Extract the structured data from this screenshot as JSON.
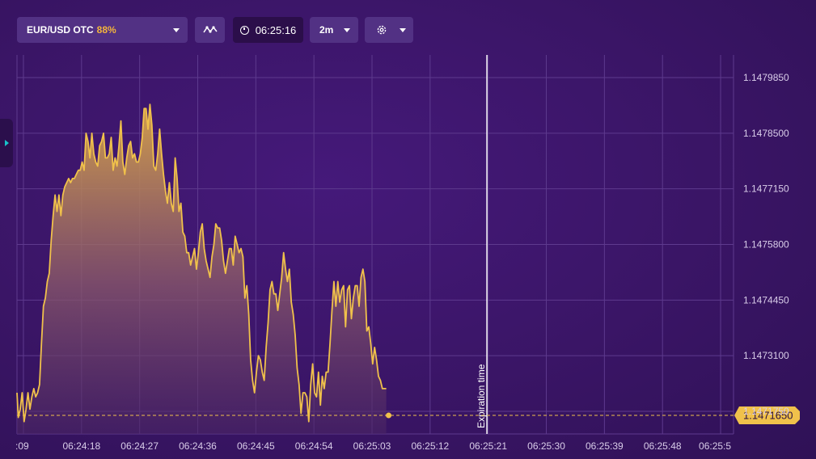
{
  "toolbar": {
    "asset_name": "EUR/USD OTC",
    "asset_payout": "88%",
    "timer": "06:25:16",
    "timeframe": "2m",
    "indicators_icon": "wave-icon",
    "timer_icon": "stopwatch-icon",
    "settings_icon": "gear-icon"
  },
  "colors": {
    "line": "#f0c14b",
    "payout": "#f3b43c",
    "background": "#3a1764",
    "expiration_line": "#ffffff"
  },
  "chart_data": {
    "type": "area",
    "y_ticks": [
      "1.1479850",
      "1.1478500",
      "1.1477150",
      "1.1475800",
      "1.1474450",
      "1.1473100",
      "1.1471750"
    ],
    "x_ticks": [
      ":09",
      "06:24:18",
      "06:24:27",
      "06:24:36",
      "06:24:45",
      "06:24:54",
      "06:25:03",
      "06:25:12",
      "06:25:21",
      "06:25:30",
      "06:25:39",
      "06:25:48",
      "06:25:5"
    ],
    "current_price": "1.1471650",
    "expiration_label": "Expiration time",
    "grid": true,
    "ylim": [
      1.14712,
      1.14804
    ],
    "xlim_seconds_after_06_24_08": [
      0,
      111
    ],
    "expiration_x_seconds": 72.8,
    "points": [
      [
        0.0,
        1.14722
      ],
      [
        0.2,
        1.14716
      ],
      [
        0.5,
        1.14718
      ],
      [
        0.8,
        1.14722
      ],
      [
        1.1,
        1.14715
      ],
      [
        1.4,
        1.14718
      ],
      [
        1.7,
        1.14722
      ],
      [
        2.0,
        1.14718
      ],
      [
        2.3,
        1.14721
      ],
      [
        2.6,
        1.14723
      ],
      [
        2.9,
        1.14721
      ],
      [
        3.2,
        1.14722
      ],
      [
        3.5,
        1.14724
      ],
      [
        3.8,
        1.14734
      ],
      [
        4.1,
        1.14743
      ],
      [
        4.4,
        1.14745
      ],
      [
        4.7,
        1.14749
      ],
      [
        5.0,
        1.14751
      ],
      [
        5.3,
        1.14759
      ],
      [
        5.6,
        1.14765
      ],
      [
        5.9,
        1.1477
      ],
      [
        6.2,
        1.14766
      ],
      [
        6.5,
        1.1477
      ],
      [
        6.8,
        1.14765
      ],
      [
        7.1,
        1.1477
      ],
      [
        7.4,
        1.14772
      ],
      [
        7.7,
        1.14773
      ],
      [
        8.0,
        1.14774
      ],
      [
        8.3,
        1.14773
      ],
      [
        8.6,
        1.14774
      ],
      [
        8.9,
        1.14774
      ],
      [
        9.2,
        1.14775
      ],
      [
        9.5,
        1.14776
      ],
      [
        9.8,
        1.14776
      ],
      [
        10.1,
        1.14778
      ],
      [
        10.4,
        1.14776
      ],
      [
        10.7,
        1.14785
      ],
      [
        11.0,
        1.14783
      ],
      [
        11.3,
        1.14779
      ],
      [
        11.6,
        1.14785
      ],
      [
        11.9,
        1.1478
      ],
      [
        12.2,
        1.14778
      ],
      [
        12.5,
        1.14777
      ],
      [
        12.8,
        1.14782
      ],
      [
        13.1,
        1.14783
      ],
      [
        13.4,
        1.14785
      ],
      [
        13.7,
        1.14779
      ],
      [
        14.0,
        1.14779
      ],
      [
        14.3,
        1.1478
      ],
      [
        14.6,
        1.14784
      ],
      [
        14.9,
        1.14776
      ],
      [
        15.2,
        1.14779
      ],
      [
        15.5,
        1.14777
      ],
      [
        15.8,
        1.14782
      ],
      [
        16.1,
        1.14788
      ],
      [
        16.4,
        1.14778
      ],
      [
        16.7,
        1.14775
      ],
      [
        17.0,
        1.14779
      ],
      [
        17.3,
        1.14782
      ],
      [
        17.6,
        1.14783
      ],
      [
        17.9,
        1.14779
      ],
      [
        18.2,
        1.1478
      ],
      [
        18.5,
        1.14778
      ],
      [
        18.8,
        1.14778
      ],
      [
        19.1,
        1.1478
      ],
      [
        19.4,
        1.14784
      ],
      [
        19.7,
        1.14791
      ],
      [
        20.0,
        1.14791
      ],
      [
        20.3,
        1.14786
      ],
      [
        20.6,
        1.14792
      ],
      [
        20.9,
        1.14787
      ],
      [
        21.2,
        1.14777
      ],
      [
        21.5,
        1.14776
      ],
      [
        21.8,
        1.1478
      ],
      [
        22.1,
        1.14786
      ],
      [
        22.4,
        1.1478
      ],
      [
        22.7,
        1.14775
      ],
      [
        23.0,
        1.14771
      ],
      [
        23.3,
        1.14768
      ],
      [
        23.6,
        1.14773
      ],
      [
        23.9,
        1.14768
      ],
      [
        24.2,
        1.14766
      ],
      [
        24.5,
        1.14779
      ],
      [
        24.8,
        1.14774
      ],
      [
        25.1,
        1.14766
      ],
      [
        25.4,
        1.14768
      ],
      [
        25.7,
        1.14761
      ],
      [
        26.0,
        1.1476
      ],
      [
        26.3,
        1.14756
      ],
      [
        26.6,
        1.14756
      ],
      [
        26.9,
        1.14753
      ],
      [
        27.2,
        1.14755
      ],
      [
        27.5,
        1.14757
      ],
      [
        27.8,
        1.14752
      ],
      [
        28.1,
        1.14756
      ],
      [
        28.4,
        1.14761
      ],
      [
        28.7,
        1.14763
      ],
      [
        29.0,
        1.14757
      ],
      [
        29.3,
        1.14754
      ],
      [
        29.6,
        1.14752
      ],
      [
        29.9,
        1.1475
      ],
      [
        30.2,
        1.14755
      ],
      [
        30.5,
        1.14758
      ],
      [
        30.8,
        1.14763
      ],
      [
        31.1,
        1.14762
      ],
      [
        31.4,
        1.14762
      ],
      [
        31.7,
        1.14759
      ],
      [
        32.0,
        1.14754
      ],
      [
        32.3,
        1.14751
      ],
      [
        32.6,
        1.14754
      ],
      [
        32.9,
        1.14757
      ],
      [
        33.2,
        1.14757
      ],
      [
        33.5,
        1.14753
      ],
      [
        33.8,
        1.1476
      ],
      [
        34.1,
        1.14758
      ],
      [
        34.4,
        1.14756
      ],
      [
        34.7,
        1.14757
      ],
      [
        35.0,
        1.14755
      ],
      [
        35.3,
        1.14745
      ],
      [
        35.6,
        1.14748
      ],
      [
        35.9,
        1.14741
      ],
      [
        36.2,
        1.1473
      ],
      [
        36.5,
        1.14725
      ],
      [
        36.8,
        1.14722
      ],
      [
        37.1,
        1.14727
      ],
      [
        37.4,
        1.14731
      ],
      [
        37.7,
        1.1473
      ],
      [
        38.0,
        1.14727
      ],
      [
        38.3,
        1.14725
      ],
      [
        38.6,
        1.14733
      ],
      [
        38.9,
        1.14739
      ],
      [
        39.2,
        1.14747
      ],
      [
        39.5,
        1.14749
      ],
      [
        39.8,
        1.14746
      ],
      [
        40.1,
        1.14746
      ],
      [
        40.4,
        1.14742
      ],
      [
        40.7,
        1.14746
      ],
      [
        41.0,
        1.1475
      ],
      [
        41.3,
        1.14756
      ],
      [
        41.6,
        1.14752
      ],
      [
        41.9,
        1.14749
      ],
      [
        42.2,
        1.14752
      ],
      [
        42.5,
        1.14744
      ],
      [
        42.8,
        1.14741
      ],
      [
        43.1,
        1.14736
      ],
      [
        43.4,
        1.14728
      ],
      [
        43.7,
        1.14724
      ],
      [
        44.0,
        1.14717
      ],
      [
        44.3,
        1.14722
      ],
      [
        44.6,
        1.14722
      ],
      [
        44.9,
        1.14721
      ],
      [
        45.2,
        1.14715
      ],
      [
        45.5,
        1.14724
      ],
      [
        45.8,
        1.14729
      ],
      [
        46.1,
        1.14722
      ],
      [
        46.4,
        1.14721
      ],
      [
        46.7,
        1.14727
      ],
      [
        47.0,
        1.14719
      ],
      [
        47.3,
        1.14726
      ],
      [
        47.6,
        1.14723
      ],
      [
        47.9,
        1.14727
      ],
      [
        48.2,
        1.14727
      ],
      [
        48.5,
        1.14734
      ],
      [
        48.8,
        1.14742
      ],
      [
        49.1,
        1.14749
      ],
      [
        49.4,
        1.14743
      ],
      [
        49.7,
        1.14749
      ],
      [
        50.0,
        1.14744
      ],
      [
        50.3,
        1.14747
      ],
      [
        50.6,
        1.14748
      ],
      [
        50.9,
        1.14738
      ],
      [
        51.2,
        1.14747
      ],
      [
        51.5,
        1.14748
      ],
      [
        51.8,
        1.1474
      ],
      [
        52.1,
        1.14745
      ],
      [
        52.4,
        1.14748
      ],
      [
        52.7,
        1.14748
      ],
      [
        53.0,
        1.14743
      ],
      [
        53.3,
        1.1475
      ],
      [
        53.6,
        1.14752
      ],
      [
        53.9,
        1.14749
      ],
      [
        54.2,
        1.14737
      ],
      [
        54.5,
        1.14738
      ],
      [
        54.8,
        1.14734
      ],
      [
        55.1,
        1.14729
      ],
      [
        55.4,
        1.14733
      ],
      [
        55.7,
        1.1473
      ],
      [
        56.0,
        1.14726
      ],
      [
        56.3,
        1.14725
      ],
      [
        56.6,
        1.14723
      ],
      [
        56.9,
        1.14723
      ],
      [
        57.2,
        1.14723
      ]
    ]
  }
}
